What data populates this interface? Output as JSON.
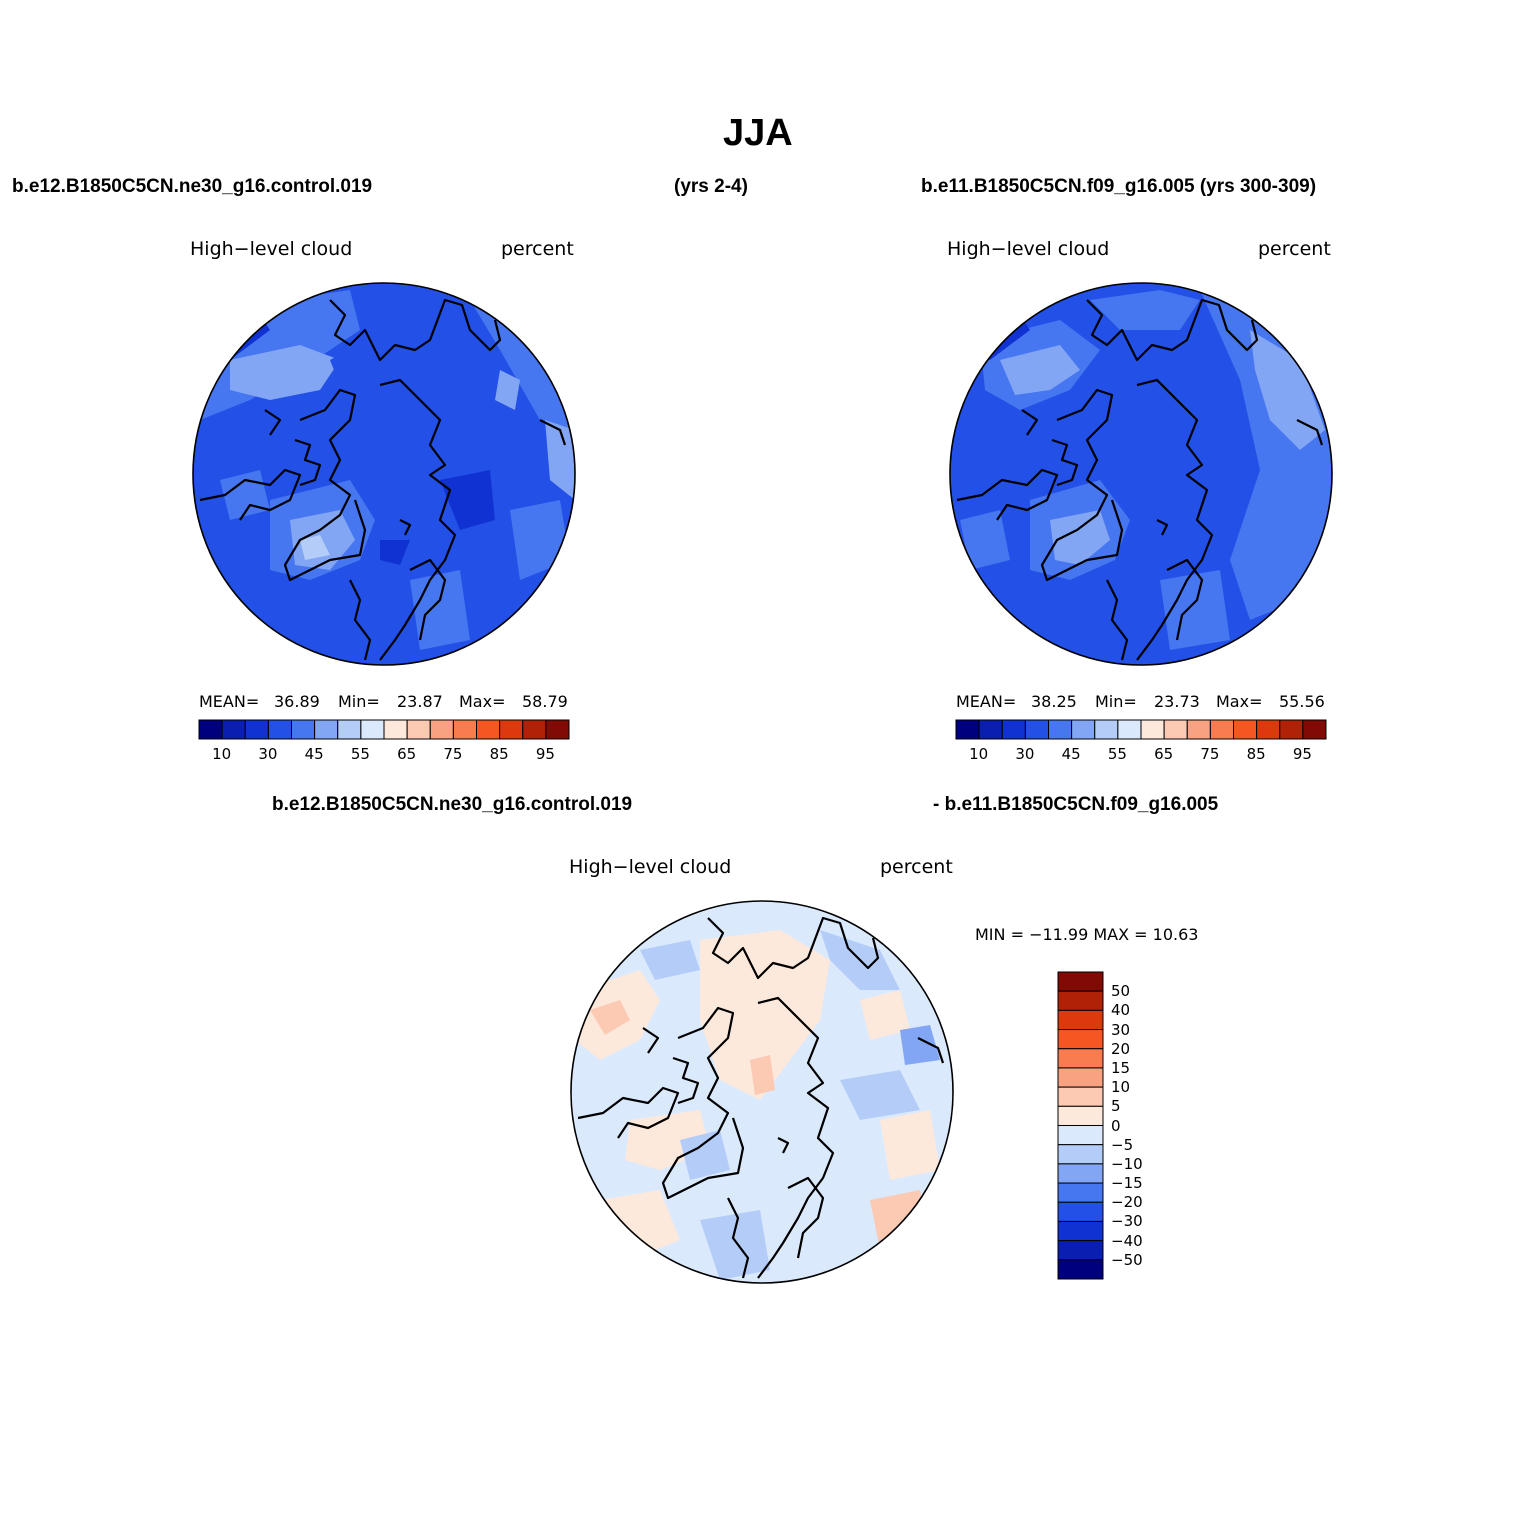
{
  "title": "JJA",
  "case_labels": {
    "top_left": "b.e12.B1850C5CN.ne30_g16.control.019",
    "top_middle": "(yrs 2-4)",
    "top_right": "b.e11.B1850C5CN.f09_g16.005 (yrs 300-309)",
    "diff_left": "b.e12.B1850C5CN.ne30_g16.control.019",
    "diff_right": "- b.e11.B1850C5CN.f09_g16.005"
  },
  "panels": [
    {
      "variable": "High−level cloud",
      "units": "percent",
      "stats": {
        "mean_label": "MEAN=",
        "mean": "36.89",
        "min_label": "Min=",
        "min": "23.87",
        "max_label": "Max=",
        "max": "58.79"
      }
    },
    {
      "variable": "High−level cloud",
      "units": "percent",
      "stats": {
        "mean_label": "MEAN=",
        "mean": "38.25",
        "min_label": "Min=",
        "min": "23.73",
        "max_label": "Max=",
        "max": "55.56"
      }
    }
  ],
  "diff_panel": {
    "variable": "High−level cloud",
    "units": "percent",
    "stats": "MIN = −11.99 MAX =   10.63"
  },
  "colorbar_abs": {
    "colors": [
      "#00007f",
      "#0a1fb2",
      "#1032d2",
      "#2350e6",
      "#4676f0",
      "#83a6f4",
      "#b4ccf8",
      "#dbe9fc",
      "#fde9dc",
      "#fcc9b3",
      "#f9a281",
      "#f87c4f",
      "#f65722",
      "#dc3a0c",
      "#b02108",
      "#820a04"
    ],
    "tick_labels": [
      "10",
      "30",
      "45",
      "55",
      "65",
      "75",
      "85",
      "95"
    ]
  },
  "colorbar_diff": {
    "colors_top_to_bottom": [
      "#820a04",
      "#b02108",
      "#dc3a0c",
      "#f65722",
      "#f87c4f",
      "#f9a281",
      "#fcc9b3",
      "#fde9dc",
      "#dbe9fc",
      "#b4ccf8",
      "#83a6f4",
      "#4676f0",
      "#2350e6",
      "#1032d2",
      "#0a1fb2",
      "#00007f"
    ],
    "tick_labels": [
      "50",
      "40",
      "30",
      "20",
      "15",
      "10",
      "5",
      "0",
      "−5",
      "−10",
      "−15",
      "−20",
      "−30",
      "−40",
      "−50"
    ]
  }
}
